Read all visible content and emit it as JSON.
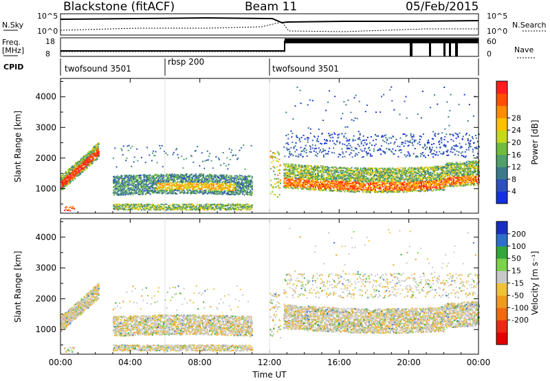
{
  "header": {
    "radar": "Blackstone (fitACF)",
    "beam": "Beam 11",
    "date": "05/Feb/2015"
  },
  "meta_panels": {
    "nsky_label": "N.Sky",
    "nsearch_label": "N.Search",
    "freq_label_1": "Freq.",
    "freq_label_2": "[MHz]",
    "nave_label": "Nave",
    "cpid_label": "CPID",
    "noise_ticks": [
      "10^5",
      "10^0"
    ],
    "freq_ticks": [
      "18",
      "8"
    ],
    "nave_ticks": [
      "60",
      "0"
    ],
    "cpid_segments": [
      {
        "label": "twofsound 3501",
        "start": 0,
        "end": 6
      },
      {
        "label": "rbsp 200",
        "start": 6,
        "end": 12
      },
      {
        "label": "twofsound 3501",
        "start": 12,
        "end": 24
      }
    ]
  },
  "chart_data": [
    {
      "type": "heatmap",
      "ylabel": "Slant Range [km]",
      "xlabel": "",
      "x_ticks": [
        "00:00",
        "04:00",
        "08:00",
        "12:00",
        "16:00",
        "20:00",
        "00:00"
      ],
      "y_ticks": [
        "1000",
        "2000",
        "3000",
        "4000"
      ],
      "xlim_hours": [
        0,
        24
      ],
      "ylim_km": [
        200,
        4600
      ],
      "colorbar": {
        "label": "Power [dB]",
        "ticks": [
          "4",
          "8",
          "12",
          "16",
          "20",
          "24",
          "28"
        ],
        "colors": [
          "#1530e0",
          "#2d4fc0",
          "#3a7a8c",
          "#4fa06a",
          "#70bc3c",
          "#c6d81e",
          "#ffc000",
          "#ff8c00",
          "#ff5000",
          "#ff1e1e"
        ]
      }
    },
    {
      "type": "heatmap",
      "ylabel": "Slant Range [km]",
      "xlabel": "Time UT",
      "x_ticks": [
        "00:00",
        "04:00",
        "08:00",
        "12:00",
        "16:00",
        "20:00",
        "00:00"
      ],
      "y_ticks": [
        "1000",
        "2000",
        "3000",
        "4000"
      ],
      "xlim_hours": [
        0,
        24
      ],
      "ylim_km": [
        200,
        4600
      ],
      "colorbar": {
        "label": "Velocity [m s⁻¹]",
        "ticks": [
          "200",
          "100",
          "50",
          "15",
          "-15",
          "-50",
          "-100",
          "-200"
        ],
        "colors": [
          "#1a2fbf",
          "#2f6fcc",
          "#35a63a",
          "#7bd34a",
          "#c8c8c8",
          "#f0c23a",
          "#f09a20",
          "#f06a10",
          "#e82a14",
          "#e00000"
        ]
      }
    }
  ]
}
